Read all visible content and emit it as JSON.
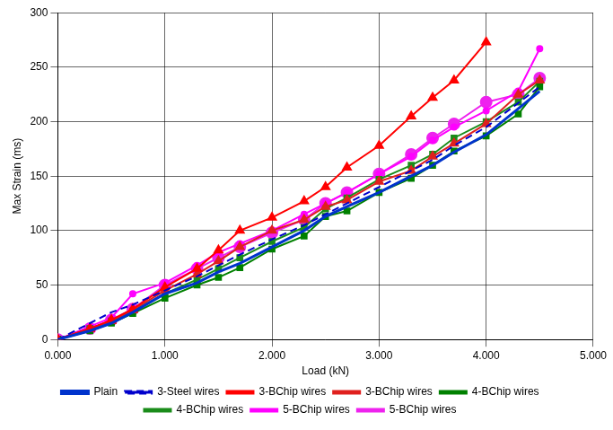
{
  "chart_data": {
    "type": "line",
    "x_label": "Load (kN)",
    "y_label": "Max Strain (ms)",
    "xlim": [
      0,
      5
    ],
    "xticks": [
      {
        "value": 0,
        "label": "0.000"
      },
      {
        "value": 1,
        "label": "1.000"
      },
      {
        "value": 2,
        "label": "2.000"
      },
      {
        "value": 3,
        "label": "3.000"
      },
      {
        "value": 4,
        "label": "4.000"
      },
      {
        "value": 5,
        "label": "5.000"
      }
    ],
    "ylim": [
      0,
      300
    ],
    "yticks": [
      0,
      50,
      100,
      150,
      200,
      250,
      300
    ],
    "grid": true,
    "legend": "bottom",
    "series": [
      {
        "name": "Plain",
        "color": "#0033cc",
        "marker": "none",
        "line_style": "solid",
        "x": [
          0,
          0.3,
          0.5,
          0.7,
          1.0,
          1.3,
          1.5,
          1.7,
          2.0,
          2.3,
          2.5,
          2.7,
          3.0,
          3.3,
          3.5,
          3.7,
          4.0,
          4.5
        ],
        "values": [
          0,
          8,
          15,
          25,
          42,
          52,
          62,
          70,
          85,
          100,
          113,
          122,
          135,
          150,
          160,
          172,
          188,
          228
        ]
      },
      {
        "name": "3-Steel wires",
        "color": "#0000cc",
        "marker": "none",
        "line_style": "dashed",
        "x": [
          0,
          0.3,
          0.5,
          0.7,
          1.0,
          1.3,
          1.5,
          1.7,
          2.0,
          2.3,
          2.5,
          2.7,
          3.0,
          3.3,
          3.5,
          3.7,
          4.0,
          4.5
        ],
        "values": [
          0,
          15,
          25,
          32,
          45,
          58,
          68,
          78,
          92,
          105,
          115,
          125,
          140,
          155,
          165,
          178,
          195,
          232
        ]
      },
      {
        "name": "3-BChip wires",
        "color": "#ff0000",
        "marker": "triangle",
        "line_style": "solid",
        "x": [
          0,
          0.3,
          0.5,
          0.7,
          1.0,
          1.3,
          1.5,
          1.7,
          2.0,
          2.3,
          2.5,
          2.7,
          3.0,
          3.3,
          3.5,
          3.7,
          4.0
        ],
        "values": [
          0,
          10,
          18,
          28,
          48,
          65,
          82,
          100,
          112,
          127,
          140,
          158,
          178,
          205,
          222,
          238,
          273
        ]
      },
      {
        "name": "3-BChip wires",
        "color": "#e0201e",
        "marker": "triangle",
        "line_style": "solid",
        "x": [
          0,
          0.3,
          0.5,
          0.7,
          1.0,
          1.3,
          1.5,
          1.7,
          2.0,
          2.3,
          2.5,
          2.7,
          3.0,
          3.3,
          3.5,
          3.7,
          4.0,
          4.3,
          4.5
        ],
        "values": [
          0,
          10,
          17,
          27,
          45,
          60,
          72,
          85,
          100,
          110,
          122,
          128,
          145,
          155,
          168,
          180,
          198,
          225,
          238
        ]
      },
      {
        "name": "4-BChip wires",
        "color": "#008000",
        "marker": "square",
        "line_style": "solid",
        "x": [
          0,
          0.3,
          0.5,
          0.7,
          1.0,
          1.3,
          1.5,
          1.7,
          2.0,
          2.3,
          2.5,
          2.7,
          3.0,
          3.3,
          3.5,
          3.7,
          4.0,
          4.3,
          4.5
        ],
        "values": [
          0,
          8,
          15,
          24,
          38,
          50,
          57,
          66,
          83,
          95,
          113,
          118,
          135,
          148,
          160,
          173,
          187,
          207,
          232
        ]
      },
      {
        "name": "4-BChip wires",
        "color": "#1a8c1a",
        "marker": "square",
        "line_style": "solid",
        "x": [
          0,
          0.3,
          0.5,
          0.7,
          1.0,
          1.3,
          1.5,
          1.7,
          2.0,
          2.3,
          2.5,
          2.7,
          3.0,
          3.3,
          3.5,
          3.7,
          4.0,
          4.3,
          4.5
        ],
        "values": [
          0,
          10,
          17,
          26,
          42,
          55,
          65,
          75,
          90,
          103,
          120,
          130,
          147,
          160,
          170,
          185,
          200,
          218,
          237
        ]
      },
      {
        "name": "5-BChip wires",
        "color": "#ff00ff",
        "marker": "dot",
        "line_style": "solid",
        "x": [
          0,
          0.3,
          0.5,
          0.7,
          1.0,
          1.3,
          1.5,
          1.7,
          2.0,
          2.3,
          2.5,
          2.7,
          3.0,
          3.3,
          3.5,
          3.7,
          4.0,
          4.3,
          4.5
        ],
        "values": [
          0,
          12,
          20,
          42,
          52,
          68,
          80,
          88,
          100,
          115,
          125,
          135,
          152,
          168,
          183,
          195,
          210,
          228,
          267
        ]
      },
      {
        "name": "5-BChip wires",
        "color": "#ee22ee",
        "marker": "circle",
        "line_style": "solid",
        "x": [
          0,
          0.3,
          0.5,
          0.7,
          1.0,
          1.3,
          1.5,
          1.7,
          2.0,
          2.3,
          2.5,
          2.7,
          3.0,
          3.3,
          3.5,
          3.7,
          4.0,
          4.3,
          4.5
        ],
        "values": [
          0,
          10,
          18,
          28,
          50,
          65,
          75,
          85,
          98,
          110,
          125,
          135,
          152,
          170,
          185,
          198,
          218,
          225,
          240
        ]
      }
    ]
  }
}
